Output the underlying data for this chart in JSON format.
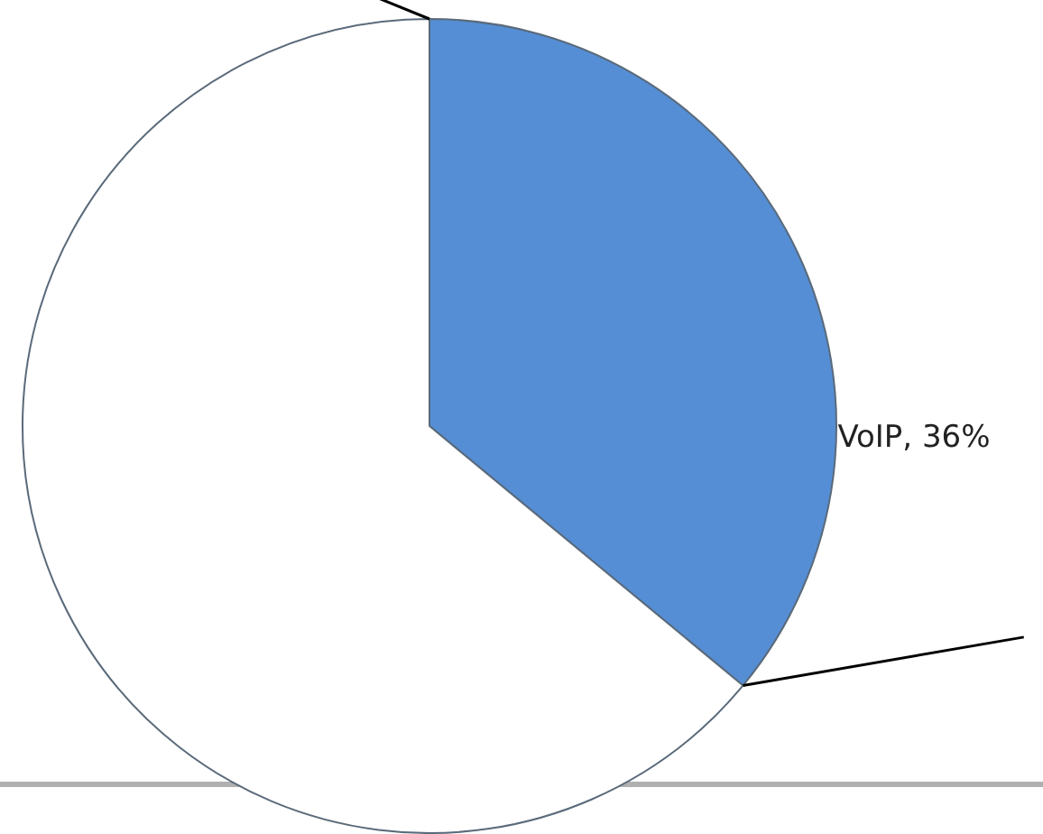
{
  "chart_data": {
    "type": "pie",
    "categories": [
      "VoIP",
      null
    ],
    "values": [
      36,
      64
    ],
    "colors": [
      "#558ed5",
      "#ffffff"
    ],
    "value_labels": [
      "36%",
      null
    ],
    "legend": false
  }
}
